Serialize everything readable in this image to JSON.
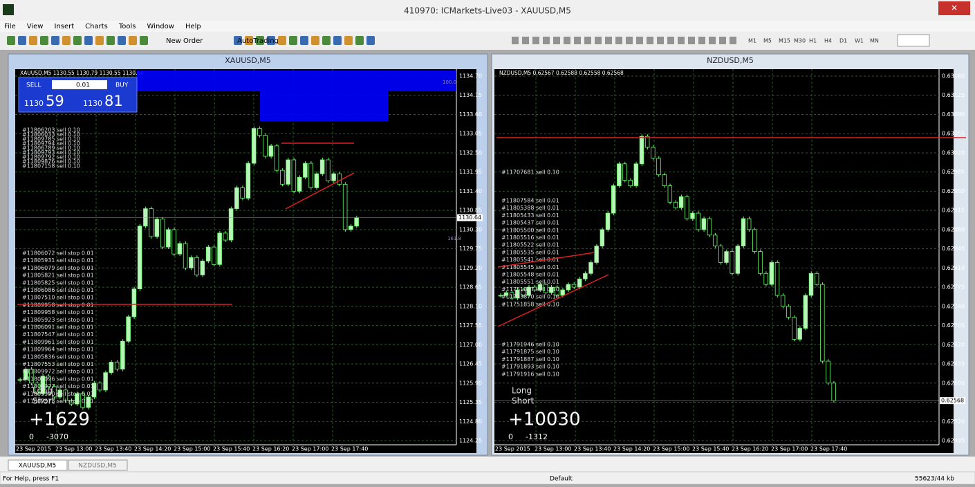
{
  "window": {
    "title": "410970: ICMarkets-Live03 - XAUUSD,M5",
    "menu": [
      "File",
      "View",
      "Insert",
      "Charts",
      "Tools",
      "Window",
      "Help"
    ],
    "toolbar": {
      "new_order": "New Order",
      "auto_trading": "AutoTrading",
      "timeframes": [
        "M1",
        "M5",
        "M15",
        "M30",
        "H1",
        "H4",
        "D1",
        "W1",
        "MN"
      ]
    },
    "tabs": [
      "XAUUSD,M5",
      "NZDUSD,M5"
    ],
    "status": {
      "help": "For Help, press F1",
      "profile": "Default",
      "traffic": "55623/44 kb"
    }
  },
  "charts": [
    {
      "title": "XAUUSD,M5",
      "header": "XAUUSD,M5  1130.55 1130.79 1130.55 1130.64",
      "trade_panel": {
        "sell": "SELL",
        "lot": "0.01",
        "buy": "BUY",
        "bid_big": "1130",
        "bid_small": "59",
        "ask_big": "1130",
        "ask_small": "81"
      },
      "prices": [
        "1134.70",
        "1134.15",
        "1133.60",
        "1133.05",
        "1132.50",
        "1131.95",
        "1131.40",
        "1130.85",
        "1130.30",
        "1129.75",
        "1129.20",
        "1128.65",
        "1128.10",
        "1127.55",
        "1127.00",
        "1126.45",
        "1125.90",
        "1125.35",
        "1124.80",
        "1124.25"
      ],
      "current": "1130.64",
      "fib_labels": [
        "100.0",
        "161.8"
      ],
      "times": [
        "23 Sep 2015",
        "23 Sep 13:00",
        "23 Sep 13:40",
        "23 Sep 14:20",
        "23 Sep 15:00",
        "23 Sep 15:40",
        "23 Sep 16:20",
        "23 Sep 17:00",
        "23 Sep 17:40"
      ],
      "orders": [
        [
          "#11806203 sell 0.10",
          "#11806033 sell 0.10",
          "#11809785 sell 0.10",
          "#11809794 sell 0.10",
          "#11806789 sell 0.10",
          "#11809793 sell 0.10",
          "#11809792 sell 0.10",
          "#11809876 sell 0.10",
          "#11807158 sell 0.10"
        ],
        [
          "#11806072 sell stop 0.01",
          "#11805931 sell stop 0.01",
          "#11806079 sell stop 0.01",
          "#11805821 sell stop 0.01",
          "#11805825 sell stop 0.01",
          "#11806086 sell stop 0.01",
          "#11807510 sell stop 0.01",
          "#11809958 sell stop 0.01",
          "#11809958 sell stop 0.01",
          "#11805923 sell stop 0.01",
          "#11806091 sell stop 0.01",
          "#11807547 sell stop 0.01",
          "#11809961 sell stop 0.01",
          "#11809964 sell stop 0.01",
          "#11805836 sell stop 0.01",
          "#11807553 sell stop 0.01",
          "#11809972 sell stop 0.01",
          "#11806096 sell stop 0.01",
          "#11809977 sell stop 0.01",
          "#11809990 sell stop 0.01",
          "#11807573 sell stop 0.01"
        ]
      ],
      "stats": {
        "long": "Long",
        "short": "Short",
        "profit": "+1629",
        "zero": "0",
        "loss": "-3070"
      },
      "closes": [
        1126.0,
        1126.3,
        1125.9,
        1125.6,
        1126.1,
        1125.8,
        1125.5,
        1125.7,
        1125.4,
        1125.3,
        1125.6,
        1125.2,
        1125.5,
        1125.9,
        1125.7,
        1126.2,
        1126.5,
        1126.3,
        1127.1,
        1127.8,
        1128.6,
        1130.4,
        1130.9,
        1130.1,
        1130.6,
        1129.8,
        1130.3,
        1129.6,
        1129.9,
        1129.2,
        1129.5,
        1129.0,
        1129.4,
        1129.8,
        1129.3,
        1130.2,
        1130.0,
        1130.9,
        1131.5,
        1131.2,
        1132.2,
        1133.2,
        1133.0,
        1132.4,
        1132.7,
        1132.0,
        1131.6,
        1132.3,
        1131.4,
        1131.8,
        1132.2,
        1131.5,
        1131.9,
        1132.3,
        1131.7,
        1131.9,
        1131.6,
        1130.3,
        1130.4,
        1130.64
      ]
    },
    {
      "title": "NZDUSD,M5",
      "header": "NZDUSD,M5  0.62567 0.62588 0.62558 0.62568",
      "prices": [
        "0.63160",
        "0.63125",
        "0.63090",
        "0.63055",
        "0.63020",
        "0.62985",
        "0.62950",
        "0.62915",
        "0.62880",
        "0.62845",
        "0.62810",
        "0.62775",
        "0.62740",
        "0.62705",
        "0.62670",
        "0.62635",
        "0.62600",
        "0.62565",
        "0.62530",
        "0.62495"
      ],
      "current": "0.62568",
      "times": [
        "23 Sep 2015",
        "23 Sep 13:00",
        "23 Sep 13:40",
        "23 Sep 14:20",
        "23 Sep 15:00",
        "23 Sep 15:40",
        "23 Sep 16:20",
        "23 Sep 17:00",
        "23 Sep 17:40"
      ],
      "orders": [
        [
          "#11707681 sell 0.10"
        ],
        [
          "#11807584 sell 0.01",
          "#11805388 sell 0.01",
          "#11805433 sell 0.01",
          "#11805437 sell 0.01",
          "#11805500 sell 0.01",
          "#11805516 sell 0.01",
          "#11805522 sell 0.01",
          "#11805535 sell 0.01",
          "#11805541 sell 0.01",
          "#11805545 sell 0.01",
          "#11805548 sell 0.01",
          "#11805551 sell 0.01",
          "#11751857 sell 0.10",
          "#11743870 sell 0.10",
          "#11751858 sell 0.10"
        ],
        [
          "#11791946 sell 0.10",
          "#11791875 sell 0.10",
          "#11791887 sell 0.10",
          "#11791893 sell 0.10",
          "#11791916 sell 0.10"
        ]
      ],
      "stats": {
        "long": "Long",
        "short": "Short",
        "profit": "+10030",
        "zero": "0",
        "loss": "-1312"
      },
      "closes": [
        0.6276,
        0.62765,
        0.62755,
        0.6277,
        0.6276,
        0.62775,
        0.6277,
        0.6278,
        0.62765,
        0.62775,
        0.6276,
        0.6277,
        0.6278,
        0.62775,
        0.6279,
        0.628,
        0.6282,
        0.6285,
        0.6288,
        0.6291,
        0.6296,
        0.63,
        0.6297,
        0.6296,
        0.63,
        0.6305,
        0.6303,
        0.6301,
        0.6298,
        0.6296,
        0.6293,
        0.6292,
        0.6294,
        0.629,
        0.6291,
        0.6288,
        0.629,
        0.6287,
        0.6285,
        0.6282,
        0.6284,
        0.628,
        0.6285,
        0.629,
        0.6288,
        0.6284,
        0.628,
        0.6278,
        0.6282,
        0.6276,
        0.6274,
        0.6272,
        0.6268,
        0.627,
        0.6276,
        0.628,
        0.6278,
        0.6264,
        0.626,
        0.62568
      ]
    }
  ]
}
